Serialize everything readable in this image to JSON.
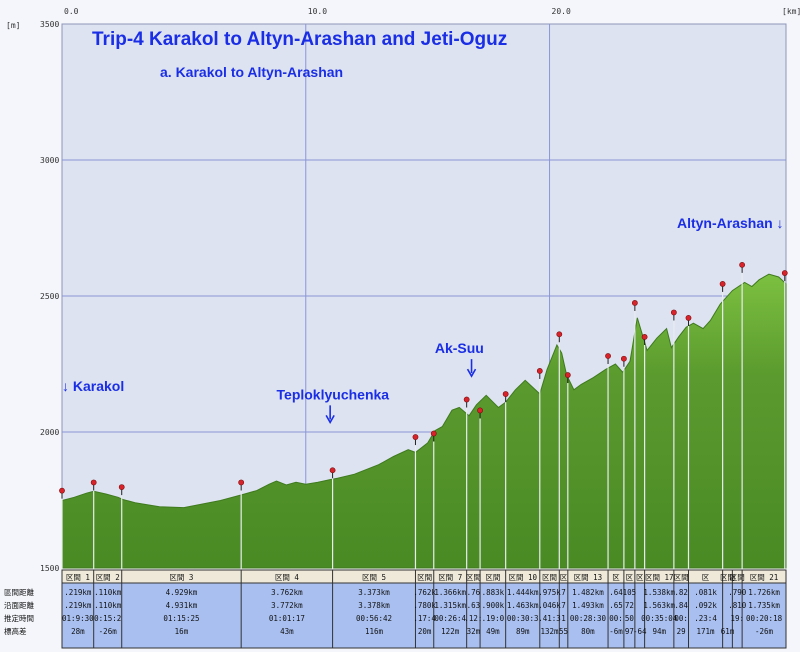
{
  "chart_data": {
    "type": "area",
    "title": "Trip-4 Karakol to Altyn-Arashan and Jeti-Oguz",
    "subtitle": "a. Karakol to Altyn-Arashan",
    "y_unit_label": "[m]",
    "x_unit_label": "[km]",
    "xlim": [
      0,
      29.7
    ],
    "ylim": [
      1500,
      3500
    ],
    "x_ticks": [
      {
        "value": 0,
        "label": "0.0"
      },
      {
        "value": 10,
        "label": "10.0"
      },
      {
        "value": 20,
        "label": "20.0"
      }
    ],
    "y_ticks": [
      {
        "value": 3500,
        "label": "3500"
      },
      {
        "value": 3000,
        "label": "3000"
      },
      {
        "value": 2500,
        "label": "2500"
      },
      {
        "value": 2000,
        "label": "2000"
      },
      {
        "value": 1500,
        "label": "1500"
      }
    ],
    "colors": {
      "fill": "#5a9a2e",
      "fill_top": "#7cc040",
      "plot_bg": "#dde3f1",
      "grid": "#8a96d8",
      "title": "#1a2ee6",
      "table_bg": "#a8bff0",
      "marker": "#d8232a"
    },
    "profile": {
      "x": [
        0,
        0.5,
        1.0,
        1.3,
        1.8,
        2.3,
        2.5,
        3.0,
        4.0,
        5.0,
        6.5,
        7.4,
        8.0,
        8.5,
        8.8,
        9.2,
        9.6,
        10.0,
        10.5,
        11.0,
        11.3,
        12.0,
        13.0,
        13.6,
        14.2,
        14.5,
        15.0,
        15.3,
        15.6,
        16.0,
        16.3,
        16.7,
        17.0,
        17.4,
        17.9,
        18.2,
        18.6,
        19.0,
        19.6,
        19.9,
        20.3,
        20.5,
        20.7,
        21.0,
        21.3,
        21.8,
        22.3,
        22.7,
        23.0,
        23.3,
        23.6,
        24.0,
        24.4,
        24.8,
        25.0,
        25.3,
        25.6,
        25.9,
        26.3,
        26.6,
        27.0,
        27.5,
        28.0,
        28.3,
        28.6,
        29.0,
        29.4,
        29.7
      ],
      "y": [
        1748,
        1760,
        1775,
        1782,
        1772,
        1760,
        1752,
        1740,
        1725,
        1722,
        1748,
        1770,
        1785,
        1808,
        1820,
        1805,
        1815,
        1808,
        1815,
        1825,
        1830,
        1845,
        1880,
        1910,
        1935,
        1925,
        1960,
        2005,
        2020,
        2080,
        2090,
        2060,
        2100,
        2135,
        2090,
        2110,
        2155,
        2190,
        2140,
        2230,
        2320,
        2290,
        2210,
        2155,
        2175,
        2200,
        2230,
        2250,
        2220,
        2260,
        2420,
        2300,
        2345,
        2380,
        2310,
        2350,
        2385,
        2400,
        2380,
        2410,
        2470,
        2520,
        2550,
        2535,
        2560,
        2580,
        2570,
        2545
      ]
    },
    "markers": [
      {
        "x": 0,
        "y": 1755
      },
      {
        "x": 1.3,
        "y": 1785
      },
      {
        "x": 2.45,
        "y": 1768
      },
      {
        "x": 7.35,
        "y": 1785
      },
      {
        "x": 11.1,
        "y": 1830
      },
      {
        "x": 14.5,
        "y": 1952
      },
      {
        "x": 15.25,
        "y": 1965
      },
      {
        "x": 16.6,
        "y": 2090
      },
      {
        "x": 17.15,
        "y": 2050
      },
      {
        "x": 18.2,
        "y": 2110
      },
      {
        "x": 19.6,
        "y": 2195
      },
      {
        "x": 20.4,
        "y": 2330
      },
      {
        "x": 20.75,
        "y": 2180
      },
      {
        "x": 22.4,
        "y": 2250
      },
      {
        "x": 23.05,
        "y": 2240
      },
      {
        "x": 23.5,
        "y": 2445
      },
      {
        "x": 23.9,
        "y": 2320
      },
      {
        "x": 25.1,
        "y": 2410
      },
      {
        "x": 25.7,
        "y": 2390
      },
      {
        "x": 27.1,
        "y": 2515
      },
      {
        "x": 27.9,
        "y": 2585
      },
      {
        "x": 29.65,
        "y": 2555
      }
    ],
    "annotations": [
      {
        "text": "↓ Karakol",
        "x": 0,
        "y": 2150,
        "anchor": "start"
      },
      {
        "text": "Teploklyuchenka",
        "x": 8.8,
        "y": 2120,
        "anchor": "start",
        "arrow": true,
        "arrow_x": 11.0
      },
      {
        "text": "Ak-Suu",
        "x": 16.3,
        "y": 2290,
        "anchor": "middle",
        "arrow": true,
        "arrow_x": 16.8
      },
      {
        "text": "Altyn-Arashan ↓",
        "x": 29.6,
        "y": 2750,
        "anchor": "end"
      }
    ],
    "table": {
      "row_labels": [
        "區間距離",
        "沿面距離",
        "推定時間",
        "標高差"
      ],
      "segments": [
        {
          "x0": 0,
          "x1": 1.3,
          "head": "区間 1",
          "vals": [
            ".219km",
            ".219km",
            "01:9:30",
            "28m"
          ]
        },
        {
          "x0": 1.3,
          "x1": 2.45,
          "head": "区間 2",
          "vals": [
            ".110km",
            ".110km",
            "0:15:2",
            "-26m"
          ]
        },
        {
          "x0": 2.45,
          "x1": 7.35,
          "head": "区間 3",
          "vals": [
            "4.929km",
            "4.931km",
            "01:15:25",
            "16m"
          ]
        },
        {
          "x0": 7.35,
          "x1": 11.1,
          "head": "区間 4",
          "vals": [
            "3.762km",
            "3.772km",
            "01:01:17",
            "43m"
          ]
        },
        {
          "x0": 11.1,
          "x1": 14.5,
          "head": "区間 5",
          "vals": [
            "3.373km",
            "3.378km",
            "00:56:42",
            "116m"
          ]
        },
        {
          "x0": 14.5,
          "x1": 15.25,
          "head": "区間",
          "vals": [
            ".762k",
            ".780k",
            ".17:4",
            "20m"
          ]
        },
        {
          "x0": 15.25,
          "x1": 16.6,
          "head": "区間 7",
          "vals": [
            "1.366km",
            "1.315km",
            "00:26:4",
            "122m"
          ]
        },
        {
          "x0": 16.6,
          "x1": 17.15,
          "head": "区間",
          "vals": [
            ".76",
            ".63",
            ".12:",
            "32m"
          ]
        },
        {
          "x0": 17.15,
          "x1": 18.2,
          "head": "区間",
          "vals": [
            ".883k",
            ".900k",
            ".19:0",
            "49m"
          ]
        },
        {
          "x0": 18.2,
          "x1": 19.6,
          "head": "区間 10",
          "vals": [
            "1.444km",
            "1.463km",
            "00:30:3",
            "89m"
          ]
        },
        {
          "x0": 19.6,
          "x1": 20.4,
          "head": "区間",
          "vals": [
            ".975k",
            ".046k",
            ".41:3",
            "132m"
          ]
        },
        {
          "x0": 20.4,
          "x1": 20.75,
          "head": "区",
          "vals": [
            "7",
            "7",
            "1",
            "55"
          ]
        },
        {
          "x0": 20.75,
          "x1": 22.4,
          "head": "区間 13",
          "vals": [
            "1.482km",
            "1.493km",
            "00:28:30",
            "80m"
          ]
        },
        {
          "x0": 22.4,
          "x1": 23.05,
          "head": "区",
          "vals": [
            ".64",
            ".65",
            "00:",
            "-6m"
          ]
        },
        {
          "x0": 23.05,
          "x1": 23.5,
          "head": "区",
          "vals": [
            "105",
            "72",
            "50",
            "97"
          ]
        },
        {
          "x0": 23.5,
          "x1": 23.9,
          "head": "区",
          "vals": [
            "",
            "",
            "",
            "-64"
          ]
        },
        {
          "x0": 23.9,
          "x1": 25.1,
          "head": "区間 17",
          "vals": [
            "1.538km",
            "1.563km",
            "00:35:04",
            "94m"
          ]
        },
        {
          "x0": 25.1,
          "x1": 25.7,
          "head": "区間",
          "vals": [
            ".82",
            ".84",
            "00:",
            "29"
          ]
        },
        {
          "x0": 25.7,
          "x1": 27.1,
          "head": "区",
          "vals": [
            ".081k",
            ".092k",
            ".23:4",
            "171m"
          ]
        },
        {
          "x0": 27.1,
          "x1": 27.5,
          "head": "区間",
          "vals": [
            "",
            "",
            "",
            "61m"
          ]
        },
        {
          "x0": 27.5,
          "x1": 27.9,
          "head": "区間",
          "vals": [
            ".790",
            ".810",
            "19:",
            ""
          ]
        },
        {
          "x0": 27.9,
          "x1": 29.7,
          "head": "区間 21",
          "vals": [
            "1.726km",
            "1.735km",
            "00:20:18",
            "-26m"
          ]
        }
      ]
    }
  }
}
